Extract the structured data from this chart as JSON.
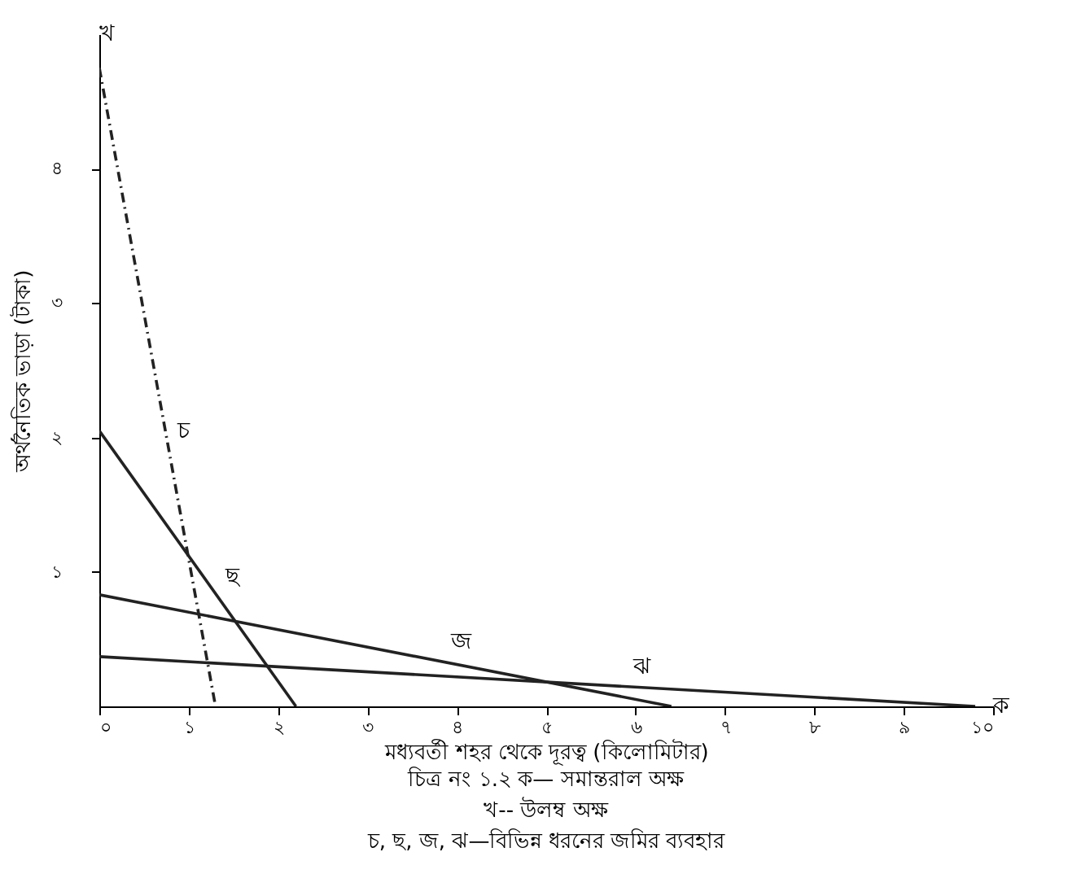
{
  "chart_data": {
    "type": "line",
    "xlabel": "মধ্যবর্তী শহর থেকে দূরত্ব (কিলোমিটার)",
    "ylabel": "অর্থনৈতিক ভাড়া (টাকা)",
    "xlim": [
      0,
      10
    ],
    "ylim": [
      0,
      5
    ],
    "xticks": [
      {
        "value": 0,
        "label": "০"
      },
      {
        "value": 1,
        "label": "১"
      },
      {
        "value": 2,
        "label": "২"
      },
      {
        "value": 3,
        "label": "৩"
      },
      {
        "value": 4,
        "label": "৪"
      },
      {
        "value": 5,
        "label": "৫"
      },
      {
        "value": 6,
        "label": "৬"
      },
      {
        "value": 7,
        "label": "৭"
      },
      {
        "value": 8,
        "label": "৮"
      },
      {
        "value": 9,
        "label": "৯"
      },
      {
        "value": 10,
        "label": "১০"
      }
    ],
    "yticks": [
      {
        "value": 1,
        "label": "১"
      },
      {
        "value": 2,
        "label": "২"
      },
      {
        "value": 3,
        "label": "৩"
      },
      {
        "value": 4,
        "label": "৪"
      }
    ],
    "grid": false,
    "series": [
      {
        "name": "চ",
        "color": "#222222",
        "line_style": "dashed",
        "x": [
          0,
          1.3
        ],
        "values": [
          4.75,
          0
        ]
      },
      {
        "name": "ছ",
        "color": "#222222",
        "line_style": "solid",
        "x": [
          0,
          2.2
        ],
        "values": [
          2.05,
          0
        ]
      },
      {
        "name": "জ",
        "color": "#222222",
        "line_style": "solid",
        "x": [
          0,
          6.4
        ],
        "values": [
          0.83,
          0
        ]
      },
      {
        "name": "ঝ",
        "color": "#222222",
        "line_style": "solid",
        "x": [
          0,
          9.8
        ],
        "values": [
          0.37,
          0
        ]
      }
    ],
    "annotations": [
      "ক",
      "খ",
      "চিত্র নং ১.২  ক— সমান্তরাল অক্ষ",
      "খ-- উলম্ব অক্ষ",
      "চ, ছ, জ, ঝ—বিভিন্ন ধরনের জমির ব্যবহার"
    ]
  }
}
